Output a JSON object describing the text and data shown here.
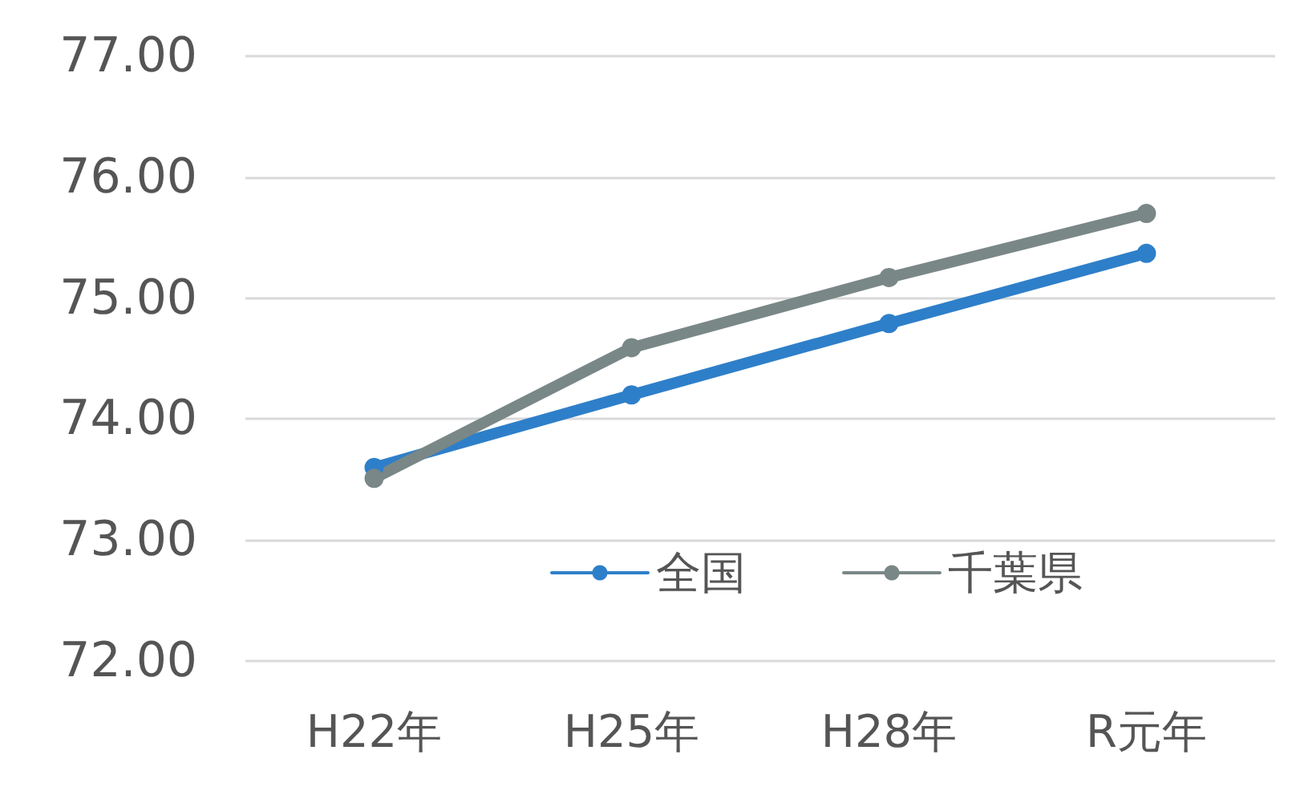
{
  "chart_data": {
    "type": "line",
    "categories": [
      "H22年",
      "H25年",
      "H28年",
      "R元年"
    ],
    "series": [
      {
        "name": "全国",
        "color": "#2e7fc9",
        "values": [
          73.6,
          74.2,
          74.79,
          75.37
        ]
      },
      {
        "name": "千葉県",
        "color": "#7a8787",
        "values": [
          73.51,
          74.59,
          75.17,
          75.7
        ]
      }
    ],
    "ylim": [
      72,
      77
    ],
    "yticks": [
      {
        "value": 72,
        "label": "72.00"
      },
      {
        "value": 73,
        "label": "73.00"
      },
      {
        "value": 74,
        "label": "74.00"
      },
      {
        "value": 75,
        "label": "75.00"
      },
      {
        "value": 76,
        "label": "76.00"
      },
      {
        "value": 77,
        "label": "77.00"
      }
    ],
    "grid": "y",
    "legend": "bottom",
    "marker": "circle",
    "line_style": "solid"
  }
}
